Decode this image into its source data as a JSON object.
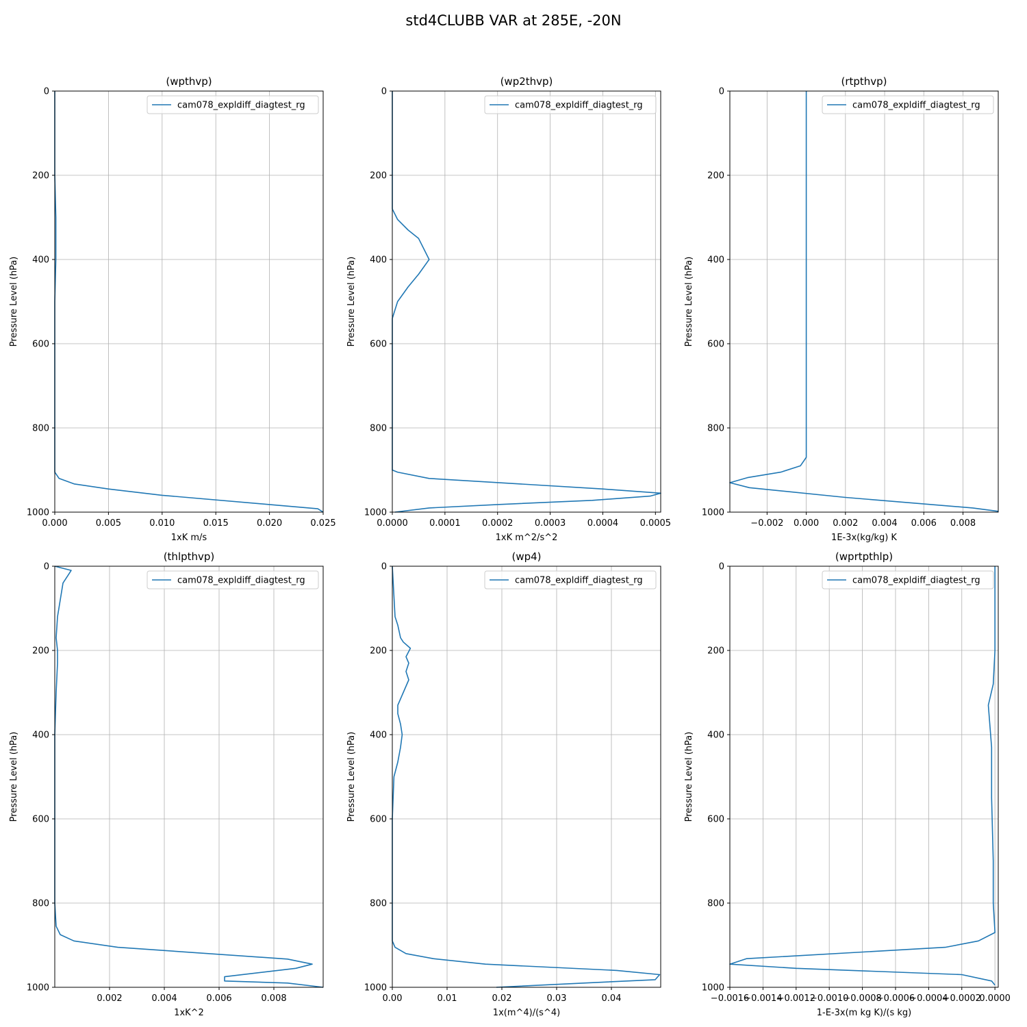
{
  "figure": {
    "suptitle": "std4CLUBB VAR at 285E, -20N"
  },
  "chart_data": [
    {
      "type": "line",
      "title": "(wpthvp)",
      "xlabel": "1xK m/s",
      "ylabel": "Pressure Level (hPa)",
      "xlim": [
        0,
        0.025
      ],
      "ylim": [
        1000,
        0
      ],
      "y_inverted": true,
      "xticks": [
        0,
        0.005,
        0.01,
        0.015,
        0.02,
        0.025
      ],
      "xtick_labels": [
        "0.000",
        "0.005",
        "0.010",
        "0.015",
        "0.020",
        "0.025"
      ],
      "yticks": [
        0,
        200,
        400,
        600,
        800,
        1000
      ],
      "ytick_labels": [
        "0",
        "200",
        "400",
        "600",
        "800",
        "1000"
      ],
      "grid": true,
      "legend_loc": "upper right",
      "series": [
        {
          "name": "cam078_expldiff_diagtest_rg",
          "color": "#1f77b4",
          "x": [
            0,
            0,
            0.0001,
            0.0001,
            0,
            0,
            0,
            0,
            0.0004,
            0.0018,
            0.005,
            0.01,
            0.02,
            0.0245,
            0.025
          ],
          "y": [
            0,
            200,
            300,
            400,
            500,
            700,
            850,
            905,
            920,
            933,
            945,
            960,
            982,
            992,
            1000
          ]
        }
      ]
    },
    {
      "type": "line",
      "title": "(wp2thvp)",
      "xlabel": "1xK m^2/s^2",
      "ylabel": "Pressure Level (hPa)",
      "xlim": [
        0,
        0.00051
      ],
      "ylim": [
        1000,
        0
      ],
      "y_inverted": true,
      "xticks": [
        0,
        0.0001,
        0.0002,
        0.0003,
        0.0004,
        0.0005
      ],
      "xtick_labels": [
        "0.0000",
        "0.0001",
        "0.0002",
        "0.0003",
        "0.0004",
        "0.0005"
      ],
      "yticks": [
        0,
        200,
        400,
        600,
        800,
        1000
      ],
      "ytick_labels": [
        "0",
        "200",
        "400",
        "600",
        "800",
        "1000"
      ],
      "grid": true,
      "legend_loc": "upper right",
      "series": [
        {
          "name": "cam078_expldiff_diagtest_rg",
          "color": "#1f77b4",
          "x": [
            0,
            0,
            0,
            1e-05,
            3e-05,
            5e-05,
            6e-05,
            7e-05,
            5e-05,
            3e-05,
            1e-05,
            0,
            0,
            0,
            0,
            1e-05,
            7e-05,
            0.0004,
            0.00051,
            0.00049,
            0.00038,
            0.0002,
            7e-05,
            5e-06
          ],
          "y": [
            0,
            200,
            280,
            305,
            330,
            350,
            375,
            400,
            435,
            465,
            500,
            540,
            700,
            890,
            900,
            905,
            920,
            945,
            955,
            962,
            972,
            982,
            990,
            1000
          ]
        }
      ]
    },
    {
      "type": "line",
      "title": "(rtpthvp)",
      "xlabel": "1E-3x(kg/kg) K",
      "ylabel": "Pressure Level (hPa)",
      "xlim": [
        -0.0039,
        0.0098
      ],
      "ylim": [
        1000,
        0
      ],
      "y_inverted": true,
      "xticks": [
        -0.002,
        0,
        0.002,
        0.004,
        0.006,
        0.008
      ],
      "xtick_labels": [
        "−0.002",
        "0.000",
        "0.002",
        "0.004",
        "0.006",
        "0.008"
      ],
      "yticks": [
        0,
        200,
        400,
        600,
        800,
        1000
      ],
      "ytick_labels": [
        "0",
        "200",
        "400",
        "600",
        "800",
        "1000"
      ],
      "grid": true,
      "legend_loc": "upper right",
      "series": [
        {
          "name": "cam078_expldiff_diagtest_rg",
          "color": "#1f77b4",
          "x": [
            0,
            0,
            0,
            0,
            0,
            0,
            -0.0003,
            -0.0013,
            -0.003,
            -0.0039,
            -0.0029,
            0.002,
            0.0085,
            0.0098
          ],
          "y": [
            0,
            200,
            400,
            600,
            800,
            870,
            890,
            905,
            918,
            930,
            942,
            965,
            990,
            998
          ]
        }
      ]
    },
    {
      "type": "line",
      "title": "(thlpthvp)",
      "xlabel": "1xK^2",
      "ylabel": "Pressure Level (hPa)",
      "xlim": [
        0,
        0.0098
      ],
      "ylim": [
        1000,
        0
      ],
      "y_inverted": true,
      "xticks": [
        0.002,
        0.004,
        0.006,
        0.008
      ],
      "xtick_labels": [
        "0.002",
        "0.004",
        "0.006",
        "0.008"
      ],
      "yticks": [
        0,
        200,
        400,
        600,
        800,
        1000
      ],
      "ytick_labels": [
        "0",
        "200",
        "400",
        "600",
        "800",
        "1000"
      ],
      "grid": true,
      "legend_loc": "upper right",
      "series": [
        {
          "name": "cam078_expldiff_diagtest_rg",
          "color": "#1f77b4",
          "x": [
            0,
            0.0006,
            0.0005,
            0.0003,
            0.0002,
            0.0001,
            5e-05,
            0.0001,
            0.0001,
            5e-05,
            0,
            0,
            0,
            5e-05,
            0.0002,
            0.0007,
            0.0023,
            0.0085,
            0.0094,
            0.0088,
            0.0062,
            0.0062,
            0.0085,
            0.0098
          ],
          "y": [
            0,
            10,
            20,
            40,
            80,
            120,
            170,
            200,
            230,
            300,
            400,
            600,
            800,
            855,
            875,
            890,
            905,
            933,
            945,
            955,
            975,
            985,
            990,
            1000
          ]
        }
      ]
    },
    {
      "type": "line",
      "title": "(wp4)",
      "xlabel": "1x(m^4)/(s^4)",
      "ylabel": "Pressure Level (hPa)",
      "xlim": [
        0,
        0.049
      ],
      "ylim": [
        1000,
        0
      ],
      "y_inverted": true,
      "xticks": [
        0,
        0.01,
        0.02,
        0.03,
        0.04
      ],
      "xtick_labels": [
        "0.00",
        "0.01",
        "0.02",
        "0.03",
        "0.04"
      ],
      "yticks": [
        0,
        200,
        400,
        600,
        800,
        1000
      ],
      "ytick_labels": [
        "0",
        "200",
        "400",
        "600",
        "800",
        "1000"
      ],
      "grid": true,
      "legend_loc": "upper right",
      "series": [
        {
          "name": "cam078_expldiff_diagtest_rg",
          "color": "#1f77b4",
          "x": [
            0,
            0.0005,
            0.001,
            0.0015,
            0.002,
            0.0033,
            0.0025,
            0.003,
            0.0025,
            0.003,
            0.002,
            0.001,
            0.001,
            0.0015,
            0.0018,
            0.0015,
            0.001,
            0.0003,
            0,
            0,
            0,
            0,
            0.0005,
            0.0025,
            0.0075,
            0.017,
            0.041,
            0.0488,
            0.048,
            0.035,
            0.019
          ],
          "y": [
            0,
            120,
            140,
            170,
            180,
            195,
            215,
            230,
            250,
            270,
            300,
            330,
            350,
            375,
            400,
            430,
            465,
            500,
            600,
            800,
            880,
            890,
            905,
            920,
            932,
            945,
            960,
            970,
            982,
            990,
            1000
          ]
        }
      ]
    },
    {
      "type": "line",
      "title": "(wprtpthlp)",
      "xlabel": "1-E-3x(m kg K)/(s kg)",
      "ylabel": "Pressure Level (hPa)",
      "xlim": [
        -0.0016,
        2e-05
      ],
      "ylim": [
        1000,
        0
      ],
      "y_inverted": true,
      "xticks": [
        -0.0016,
        -0.0014,
        -0.0012,
        -0.001,
        -0.0008,
        -0.0006,
        -0.0004,
        -0.0002,
        0
      ],
      "xtick_labels": [
        "−0.0016",
        "−0.0014",
        "−0.0012",
        "−0.0010",
        "−0.0008",
        "−0.0006",
        "−0.0004",
        "−0.0002",
        "0.0000"
      ],
      "yticks": [
        0,
        200,
        400,
        600,
        800,
        1000
      ],
      "ytick_labels": [
        "0",
        "200",
        "400",
        "600",
        "800",
        "1000"
      ],
      "grid": true,
      "legend_loc": "upper right",
      "series": [
        {
          "name": "cam078_expldiff_diagtest_rg",
          "color": "#1f77b4",
          "x": [
            0,
            0,
            -1e-05,
            -4e-05,
            -3e-05,
            -2e-05,
            -2e-05,
            -1e-05,
            -1e-05,
            0,
            -0.0001,
            -0.0003,
            -0.0015,
            -0.0016,
            -0.0012,
            -0.0002,
            -2e-05,
            0
          ],
          "y": [
            0,
            200,
            280,
            330,
            380,
            430,
            550,
            700,
            800,
            870,
            890,
            905,
            932,
            945,
            955,
            970,
            985,
            995
          ]
        }
      ]
    }
  ]
}
